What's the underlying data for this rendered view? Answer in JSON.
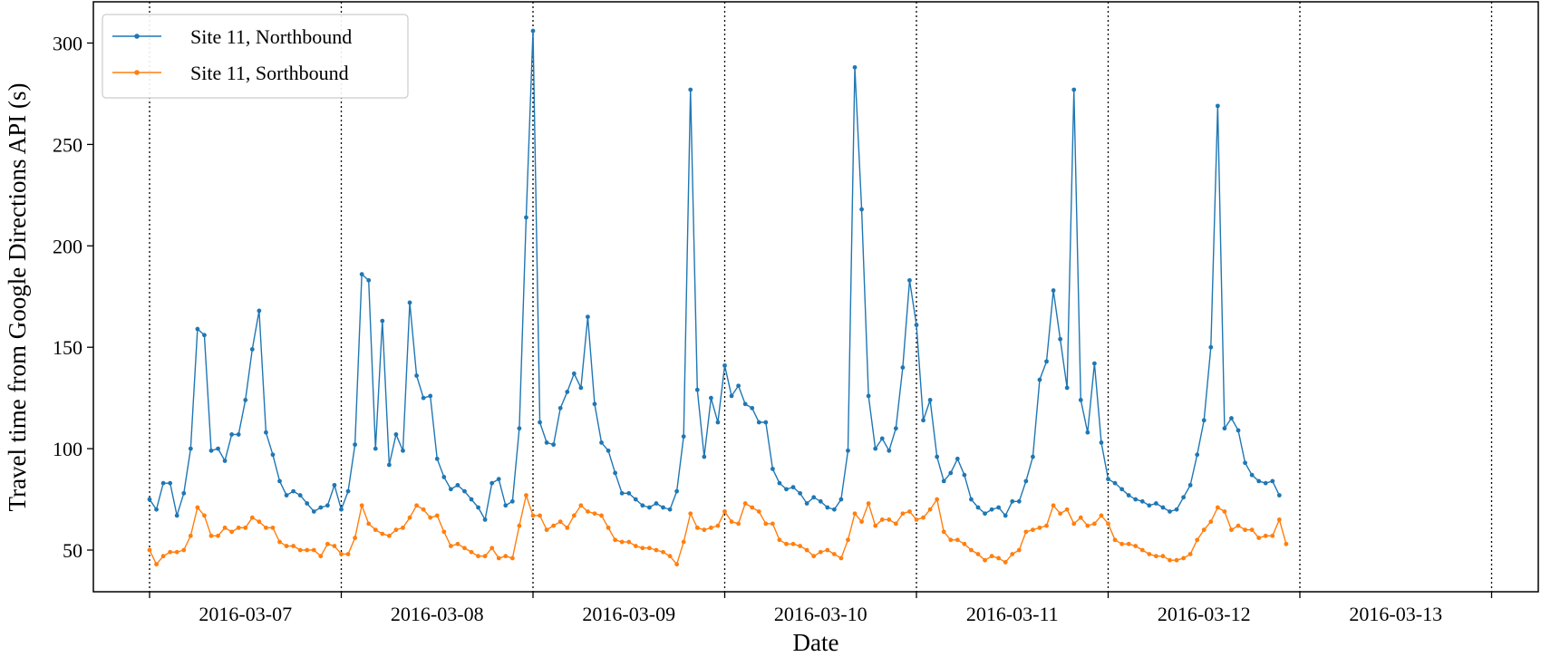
{
  "chart_data": {
    "type": "line",
    "xlabel": "Date",
    "ylabel": "Travel time from Google Directions API (s)",
    "ylim": [
      35,
      320
    ],
    "yticks": [
      50,
      100,
      150,
      200,
      250,
      300
    ],
    "day_labels": [
      "2016-03-07",
      "2016-03-08",
      "2016-03-09",
      "2016-03-10",
      "2016-03-11",
      "2016-03-12",
      "2016-03-13"
    ],
    "grid": "vertical dotted lines at day boundaries",
    "legend_position": "upper-left",
    "x_unit": "index of sample (28 samples per day, first sample at 2016-03-07)",
    "series": [
      {
        "name": "Site 11, Northbound",
        "color": "#1f77b4",
        "values": [
          75,
          70,
          83,
          83,
          67,
          78,
          100,
          159,
          156,
          99,
          100,
          94,
          107,
          107,
          124,
          149,
          168,
          108,
          97,
          84,
          77,
          79,
          77,
          73,
          69,
          71,
          72,
          82,
          70,
          79,
          102,
          186,
          183,
          100,
          163,
          92,
          107,
          99,
          172,
          136,
          125,
          126,
          95,
          86,
          80,
          82,
          79,
          75,
          71,
          65,
          83,
          85,
          72,
          74,
          110,
          214,
          306,
          113,
          103,
          102,
          120,
          128,
          137,
          130,
          165,
          122,
          103,
          99,
          88,
          78,
          78,
          75,
          72,
          71,
          73,
          71,
          70,
          79,
          106,
          277,
          129,
          96,
          125,
          113,
          141,
          126,
          131,
          122,
          120,
          113,
          113,
          90,
          83,
          80,
          81,
          78,
          73,
          76,
          74,
          71,
          70,
          75,
          99,
          288,
          218,
          126,
          100,
          105,
          99,
          110,
          140,
          183,
          161,
          114,
          124,
          96,
          84,
          88,
          95,
          87,
          75,
          71,
          68,
          70,
          71,
          67,
          74,
          74,
          84,
          96,
          134,
          143,
          178,
          154,
          130,
          277,
          124,
          108,
          142,
          103,
          85,
          83,
          80,
          77,
          75,
          74,
          72,
          73,
          71,
          69,
          70,
          76,
          82,
          97,
          114,
          150,
          269,
          110,
          115,
          109,
          93,
          87,
          84,
          83,
          84,
          77
        ]
      },
      {
        "name": "Site 11, Sorthbound",
        "color": "#ff7f0e",
        "values": [
          50,
          43,
          47,
          49,
          49,
          50,
          57,
          71,
          67,
          57,
          57,
          61,
          59,
          61,
          61,
          66,
          64,
          61,
          61,
          54,
          52,
          52,
          50,
          50,
          50,
          47,
          53,
          52,
          48,
          48,
          56,
          72,
          63,
          60,
          58,
          57,
          60,
          61,
          66,
          72,
          70,
          66,
          67,
          59,
          52,
          53,
          51,
          49,
          47,
          47,
          51,
          46,
          47,
          46,
          62,
          77,
          67,
          67,
          60,
          62,
          64,
          61,
          67,
          72,
          69,
          68,
          67,
          61,
          55,
          54,
          54,
          52,
          51,
          51,
          50,
          49,
          47,
          43,
          54,
          68,
          61,
          60,
          61,
          62,
          69,
          64,
          63,
          73,
          71,
          69,
          63,
          63,
          55,
          53,
          53,
          52,
          50,
          47,
          49,
          50,
          48,
          46,
          55,
          68,
          64,
          73,
          62,
          65,
          65,
          63,
          68,
          69,
          65,
          66,
          70,
          75,
          59,
          55,
          55,
          53,
          50,
          48,
          45,
          47,
          46,
          44,
          48,
          50,
          59,
          60,
          61,
          62,
          72,
          68,
          70,
          63,
          66,
          62,
          63,
          67,
          63,
          55,
          53,
          53,
          52,
          50,
          48,
          47,
          47,
          45,
          45,
          46,
          48,
          55,
          60,
          64,
          71,
          69,
          60,
          62,
          60,
          60,
          56,
          57,
          57,
          65,
          53
        ]
      }
    ]
  }
}
